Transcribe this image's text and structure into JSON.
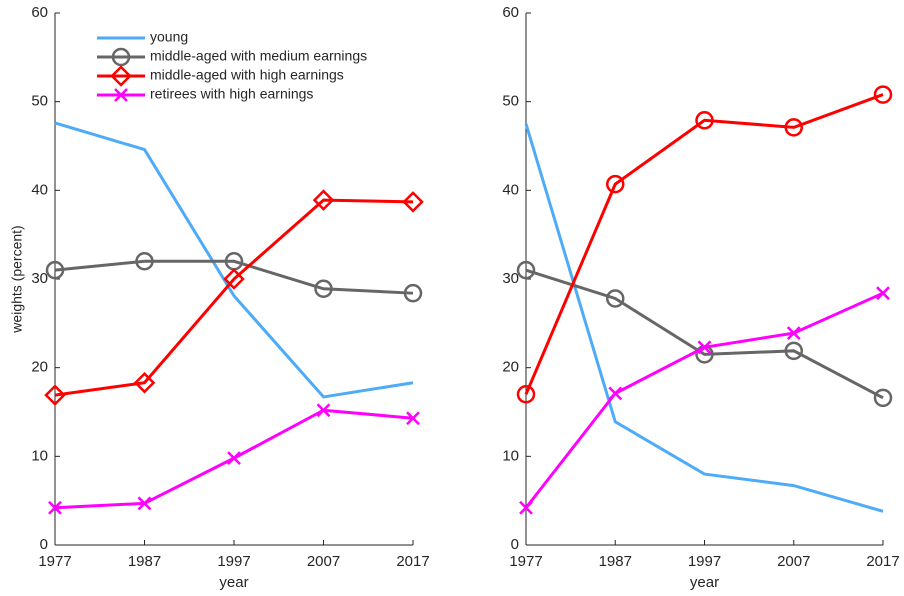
{
  "chart_data": [
    {
      "type": "line",
      "ylabel": "weights (percent)",
      "xlabel": "year",
      "x": [
        1977,
        1987,
        1997,
        2007,
        2017
      ],
      "xlim": [
        1977,
        2017
      ],
      "xticks": [
        1977,
        1987,
        1997,
        2007,
        2017
      ],
      "ylim": [
        0,
        60
      ],
      "yticks": [
        0,
        10,
        20,
        30,
        40,
        50,
        60
      ],
      "legend": "northwest",
      "series": [
        {
          "name": "young",
          "color": "#4dabf7",
          "marker": "none",
          "values": [
            47.6,
            44.6,
            28.1,
            16.7,
            18.3
          ]
        },
        {
          "name": "middle-aged with medium earnings",
          "color": "#666666",
          "marker": "circle",
          "values": [
            31.0,
            32.0,
            32.0,
            28.9,
            28.4
          ]
        },
        {
          "name": "middle-aged with high earnings",
          "color": "#ff0000",
          "marker": "diamond",
          "values": [
            16.9,
            18.3,
            30.0,
            38.9,
            38.7
          ]
        },
        {
          "name": "retirees with high earnings",
          "color": "#ff00ff",
          "marker": "x",
          "values": [
            4.2,
            4.7,
            9.8,
            15.2,
            14.3
          ]
        }
      ]
    },
    {
      "type": "line",
      "xlabel": "year",
      "x": [
        1977,
        1987,
        1997,
        2007,
        2017
      ],
      "xlim": [
        1977,
        2017
      ],
      "xticks": [
        1977,
        1987,
        1997,
        2007,
        2017
      ],
      "ylim": [
        0,
        60
      ],
      "yticks": [
        0,
        10,
        20,
        30,
        40,
        50,
        60
      ],
      "series": [
        {
          "color": "#4dabf7",
          "marker": "none",
          "values": [
            47.5,
            13.9,
            8.0,
            6.7,
            3.8
          ]
        },
        {
          "color": "#666666",
          "marker": "circle",
          "values": [
            31.0,
            27.8,
            21.5,
            21.9,
            16.6
          ]
        },
        {
          "color": "#ff0000",
          "marker": "circle",
          "values": [
            17.0,
            40.7,
            47.9,
            47.1,
            50.8
          ]
        },
        {
          "color": "#ff00ff",
          "marker": "x",
          "values": [
            4.2,
            17.1,
            22.3,
            23.9,
            28.4
          ]
        }
      ]
    }
  ]
}
